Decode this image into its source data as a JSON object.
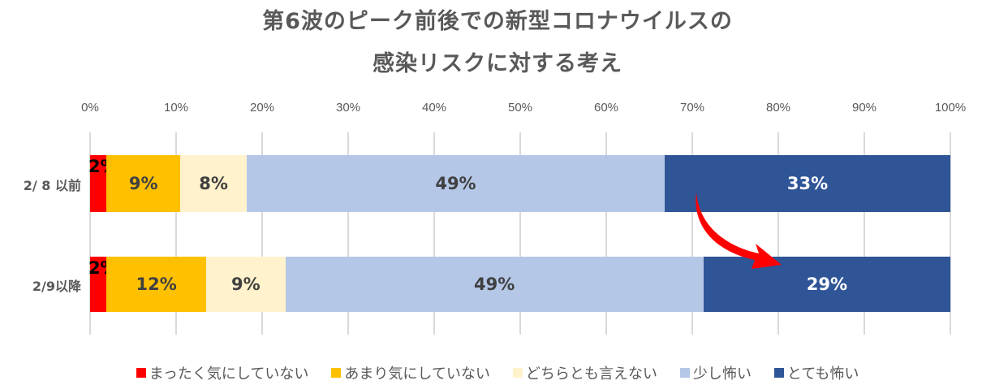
{
  "chart_data": {
    "type": "bar",
    "orientation": "horizontal",
    "stacked": "percent",
    "title": "第6波のピーク前後での新型コロナウイルスの感染リスクに対する考え",
    "title_lines": [
      "第6波のピーク前後での新型コロナウイルスの",
      "感染リスクに対する考え"
    ],
    "categories": [
      "2/ 8 以前",
      "2/9以降"
    ],
    "series": [
      {
        "name": "まったく気にしていない",
        "color": "#ff0000",
        "values": [
          2,
          2
        ],
        "widths": [
          1.9,
          1.9
        ],
        "labels": [
          "2%",
          "2%"
        ]
      },
      {
        "name": "あまり気にしていない",
        "color": "#ffc000",
        "values": [
          9,
          12
        ],
        "widths": [
          8.6,
          11.6
        ],
        "labels": [
          "9%",
          "12%"
        ]
      },
      {
        "name": "どちらとも言えない",
        "color": "#fff2cc",
        "values": [
          8,
          9
        ],
        "widths": [
          7.7,
          9.2
        ],
        "labels": [
          "8%",
          "9%"
        ]
      },
      {
        "name": "少し怖い",
        "color": "#b4c7e7",
        "values": [
          49,
          49
        ],
        "widths": [
          48.6,
          48.6
        ],
        "labels": [
          "49%",
          "49%"
        ]
      },
      {
        "name": "とても怖い",
        "color": "#2f5597",
        "values": [
          33,
          29
        ],
        "widths": [
          33.2,
          28.7
        ],
        "labels": [
          "33%",
          "29%"
        ]
      }
    ],
    "xlabel": "",
    "ylabel": "",
    "xlim": [
      0,
      100
    ],
    "x_ticks": [
      "0%",
      "10%",
      "20%",
      "30%",
      "40%",
      "50%",
      "60%",
      "70%",
      "80%",
      "90%",
      "100%"
    ],
    "grid": true,
    "legend_position": "bottom",
    "annotations": [
      {
        "type": "curved-arrow",
        "color": "#ff0000",
        "from": "2/ 8 以前 とても怖い",
        "to": "2/9以降 とても怖い"
      }
    ]
  }
}
